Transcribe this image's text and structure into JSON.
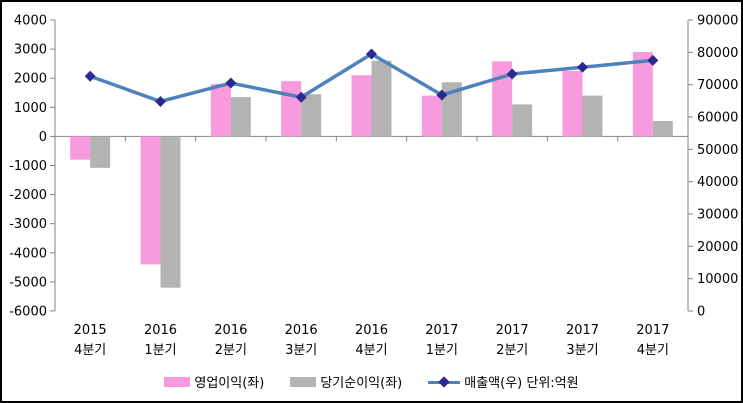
{
  "chart_data": {
    "type": "bar",
    "subtype": "combo-bar-line",
    "grid": false,
    "legend_position": "bottom",
    "categories": [
      {
        "year": "2015",
        "quarter": "4분기"
      },
      {
        "year": "2016",
        "quarter": "1분기"
      },
      {
        "year": "2016",
        "quarter": "2분기"
      },
      {
        "year": "2016",
        "quarter": "3분기"
      },
      {
        "year": "2016",
        "quarter": "4분기"
      },
      {
        "year": "2017",
        "quarter": "1분기"
      },
      {
        "year": "2017",
        "quarter": "2분기"
      },
      {
        "year": "2017",
        "quarter": "3분기"
      },
      {
        "year": "2017",
        "quarter": "4분기"
      }
    ],
    "series": [
      {
        "name": "영업이익(좌)",
        "key": "operating-profit",
        "type": "bar",
        "axis": "left",
        "color": "#F79BDE",
        "values": [
          -800,
          -4400,
          1800,
          1900,
          2100,
          1400,
          2580,
          2250,
          2900
        ]
      },
      {
        "name": "당기순이익(좌)",
        "key": "net-profit",
        "type": "bar",
        "axis": "left",
        "color": "#B3B3B3",
        "values": [
          -1080,
          -5200,
          1350,
          1450,
          2600,
          1860,
          1100,
          1400,
          530
        ]
      },
      {
        "name": "매출액(우) 단위:억원",
        "key": "revenue",
        "type": "line",
        "axis": "right",
        "color": "#4F81BD",
        "marker_color": "#2B2A90",
        "values": [
          72600,
          64800,
          70500,
          66100,
          79500,
          66800,
          73300,
          75400,
          77500
        ]
      }
    ],
    "left_axis": {
      "min": -6000,
      "max": 4000,
      "step": 1000,
      "tick_labels": [
        "4000",
        "3000",
        "2000",
        "1000",
        "0",
        "-1000",
        "-2000",
        "-3000",
        "-4000",
        "-5000",
        "-6000"
      ]
    },
    "right_axis": {
      "min": 0,
      "max": 90000,
      "step": 10000,
      "tick_labels": [
        "90000",
        "80000",
        "70000",
        "60000",
        "50000",
        "40000",
        "30000",
        "20000",
        "10000",
        "0"
      ]
    },
    "axis_color": "#848484",
    "text_color": "#000000"
  }
}
